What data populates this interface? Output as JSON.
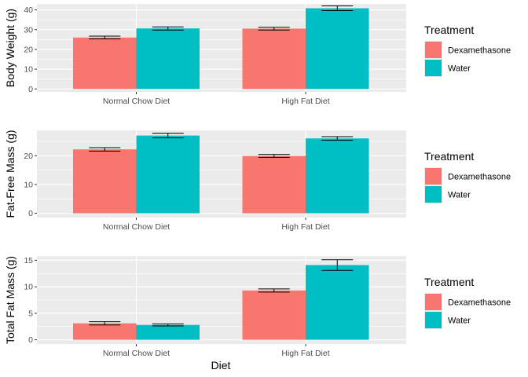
{
  "chart_data": [
    {
      "type": "bar",
      "categories": [
        "Normal Chow Diet",
        "High Fat Diet"
      ],
      "series": [
        {
          "name": "Dexamethasone",
          "values": [
            26.0,
            30.5
          ],
          "error": [
            0.7,
            0.7
          ]
        },
        {
          "name": "Water",
          "values": [
            30.6,
            40.8
          ],
          "error": [
            0.8,
            1.2
          ]
        }
      ],
      "xlabel": "",
      "ylabel": "Body Weight (g)",
      "ylim": [
        -1.5,
        43.0
      ],
      "yticks": [
        0,
        10,
        20,
        30,
        40
      ],
      "legend": {
        "title": "Treatment",
        "position": "right"
      },
      "grid": true
    },
    {
      "type": "bar",
      "categories": [
        "Normal Chow Diet",
        "High Fat Diet"
      ],
      "series": [
        {
          "name": "Dexamethasone",
          "values": [
            22.2,
            19.9
          ],
          "error": [
            0.6,
            0.5
          ]
        },
        {
          "name": "Water",
          "values": [
            27.0,
            26.0
          ],
          "error": [
            0.8,
            0.6
          ]
        }
      ],
      "xlabel": "",
      "ylabel": "Fat-Free Mass (g)",
      "ylim": [
        -1.5,
        28.8
      ],
      "yticks": [
        0,
        10,
        20
      ],
      "legend": {
        "title": "Treatment",
        "position": "right"
      },
      "grid": true
    },
    {
      "type": "bar",
      "categories": [
        "Normal Chow Diet",
        "High Fat Diet"
      ],
      "series": [
        {
          "name": "Dexamethasone",
          "values": [
            3.1,
            9.3
          ],
          "error": [
            0.3,
            0.3
          ]
        },
        {
          "name": "Water",
          "values": [
            2.8,
            14.1
          ],
          "error": [
            0.2,
            1.0
          ]
        }
      ],
      "xlabel": "Diet",
      "ylabel": "Total Fat Mass (g)",
      "ylim": [
        -0.8,
        15.8
      ],
      "yticks": [
        0,
        5,
        10,
        15
      ],
      "legend": {
        "title": "Treatment",
        "position": "right"
      },
      "grid": true
    }
  ],
  "colors": {
    "Dexamethasone": "#F8766D",
    "Water": "#00BFC4",
    "panel_background": "#EBEBEB",
    "gridline": "#FFFFFF"
  }
}
